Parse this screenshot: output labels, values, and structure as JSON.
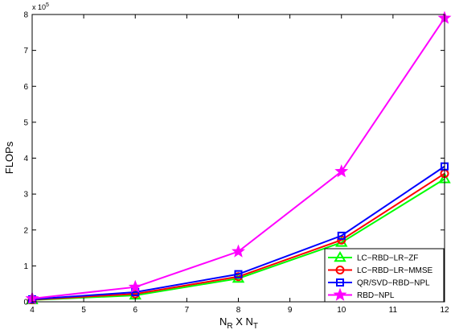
{
  "chart_data": {
    "type": "line",
    "xlabel": {
      "main": "N",
      "sub1": "R",
      "mid": " X N",
      "sub2": "T"
    },
    "ylabel": "FLOPs",
    "y_multiplier": {
      "base": "x 10",
      "exp": "5"
    },
    "xlim": [
      4,
      12
    ],
    "ylim": [
      0,
      800000
    ],
    "xticks": [
      4,
      5,
      6,
      7,
      8,
      9,
      10,
      11,
      12
    ],
    "yticks": [
      0,
      100000,
      200000,
      300000,
      400000,
      500000,
      600000,
      700000,
      800000
    ],
    "ytick_labels": [
      "0",
      "1",
      "2",
      "3",
      "4",
      "5",
      "6",
      "7",
      "8"
    ],
    "grid": false,
    "legend_position": "bottom-right",
    "x": [
      4,
      6,
      8,
      10,
      12
    ],
    "series": [
      {
        "name": "LC−RBD−LR−ZF",
        "color": "#00ff00",
        "marker": "triangle",
        "values": [
          5000,
          18000,
          65000,
          165000,
          342000
        ]
      },
      {
        "name": "LC−RBD−LR−MMSE",
        "color": "#ff0000",
        "marker": "circle",
        "values": [
          6000,
          22000,
          70000,
          172000,
          357000
        ]
      },
      {
        "name": "QR/SVD−RBD−NPL",
        "color": "#0000ff",
        "marker": "square",
        "values": [
          7000,
          27000,
          77000,
          184000,
          377000
        ]
      },
      {
        "name": "RBD−NPL",
        "color": "#ff00ff",
        "marker": "star",
        "values": [
          9000,
          41000,
          140000,
          363000,
          790000
        ]
      }
    ]
  }
}
